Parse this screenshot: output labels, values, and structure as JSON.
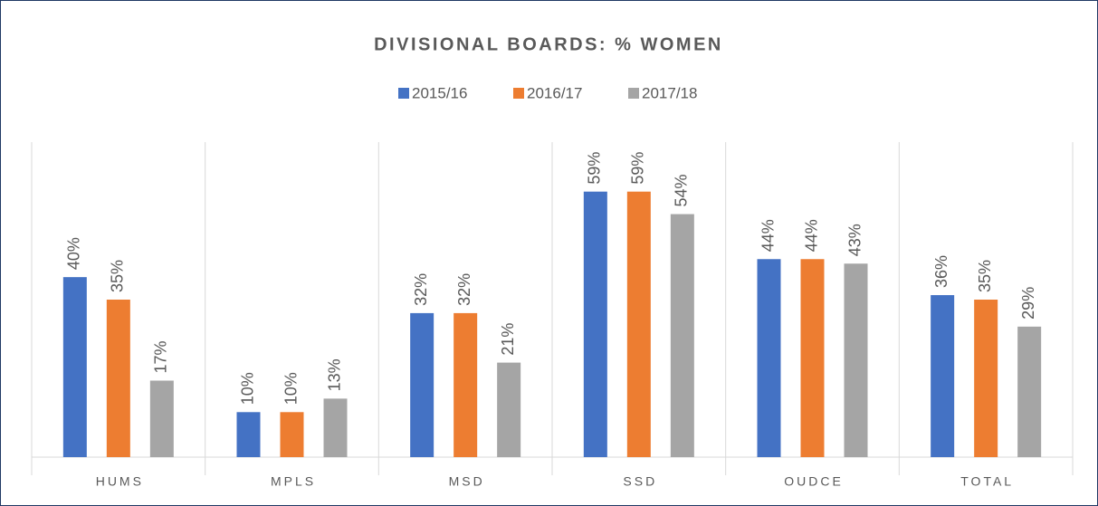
{
  "chart_data": {
    "type": "bar",
    "title": "DIVISIONAL BOARDS: % WOMEN",
    "categories": [
      "HUMS",
      "MPLS",
      "MSD",
      "SSD",
      "OUDCE",
      "TOTAL"
    ],
    "series": [
      {
        "name": "2015/16",
        "color": "#4472c4",
        "values": [
          40,
          10,
          32,
          59,
          44,
          36
        ],
        "value_labels": [
          "40%",
          "10%",
          "32%",
          "59%",
          "44%",
          "36%"
        ]
      },
      {
        "name": "2016/17",
        "color": "#ed7d31",
        "values": [
          35,
          10,
          32,
          59,
          44,
          35
        ],
        "value_labels": [
          "35%",
          "10%",
          "32%",
          "59%",
          "44%",
          "35%"
        ]
      },
      {
        "name": "2017/18",
        "color": "#a5a5a5",
        "values": [
          17,
          13,
          21,
          54,
          43,
          29
        ],
        "value_labels": [
          "17%",
          "13%",
          "21%",
          "54%",
          "43%",
          "29%"
        ]
      }
    ],
    "ylim": [
      0,
      70
    ],
    "legend": "top"
  }
}
